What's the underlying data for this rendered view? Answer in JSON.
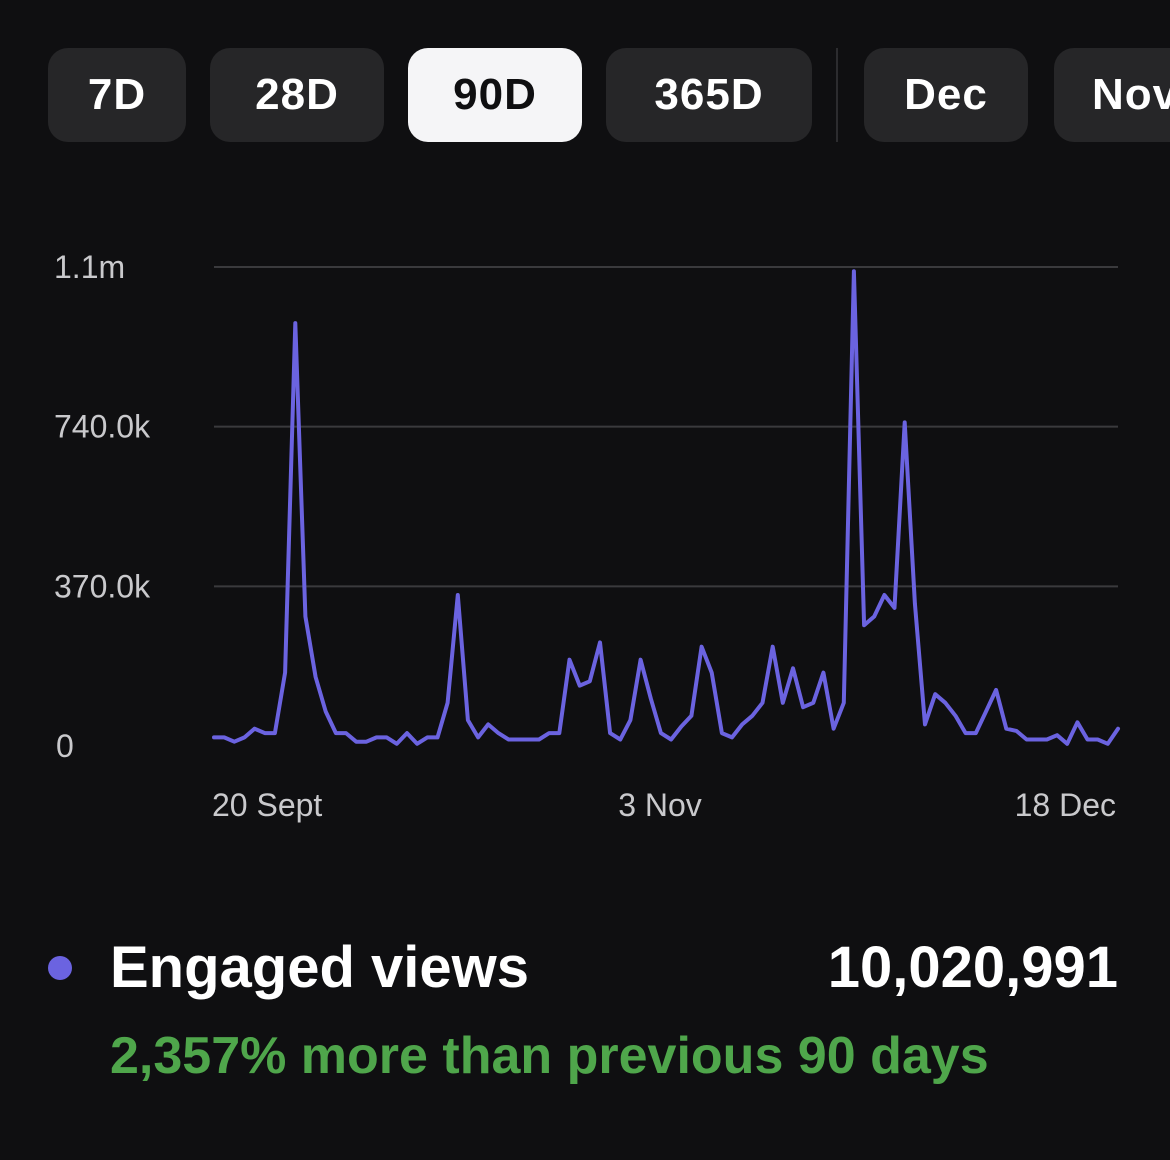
{
  "period_tabs": [
    {
      "label": "7D",
      "active": false
    },
    {
      "label": "28D",
      "active": false
    },
    {
      "label": "90D",
      "active": true
    },
    {
      "label": "365D",
      "active": false
    },
    {
      "label": "Dec",
      "active": false
    },
    {
      "label": "Nov",
      "active": false
    }
  ],
  "colors": {
    "line": "#6b63e0",
    "active_tab_bg": "#f5f5f7",
    "tab_bg": "#262628",
    "comparison_text": "#4fa64b",
    "gridline": "#3a3a3d"
  },
  "chart_data": {
    "type": "line",
    "title": "",
    "xlabel": "",
    "ylabel": "",
    "y_ticks": [
      "0",
      "370.0k",
      "740.0k",
      "1.1m"
    ],
    "y_tick_values": [
      0,
      370000,
      740000,
      1110000
    ],
    "ylim": [
      0,
      1110000
    ],
    "x_ticks": [
      "20 Sept",
      "3 Nov",
      "18 Dec"
    ],
    "grid": true,
    "series": [
      {
        "name": "Engaged views",
        "values": [
          20000,
          20000,
          10000,
          20000,
          40000,
          30000,
          30000,
          170000,
          980000,
          300000,
          160000,
          80000,
          30000,
          30000,
          10000,
          10000,
          20000,
          20000,
          5000,
          30000,
          5000,
          20000,
          20000,
          100000,
          350000,
          60000,
          20000,
          50000,
          30000,
          15000,
          15000,
          15000,
          15000,
          30000,
          30000,
          200000,
          140000,
          150000,
          240000,
          30000,
          15000,
          60000,
          200000,
          110000,
          30000,
          15000,
          45000,
          70000,
          230000,
          170000,
          30000,
          20000,
          50000,
          70000,
          100000,
          230000,
          100000,
          180000,
          90000,
          100000,
          170000,
          40000,
          100000,
          1100000,
          280000,
          300000,
          350000,
          320000,
          750000,
          330000,
          50000,
          120000,
          100000,
          70000,
          30000,
          30000,
          80000,
          130000,
          40000,
          35000,
          15000,
          15000,
          15000,
          25000,
          5000,
          55000,
          15000,
          15000,
          5000,
          40000
        ]
      }
    ]
  },
  "legend": {
    "label": "Engaged views",
    "total": "10,020,991",
    "comparison": "2,357% more than previous 90 days"
  }
}
